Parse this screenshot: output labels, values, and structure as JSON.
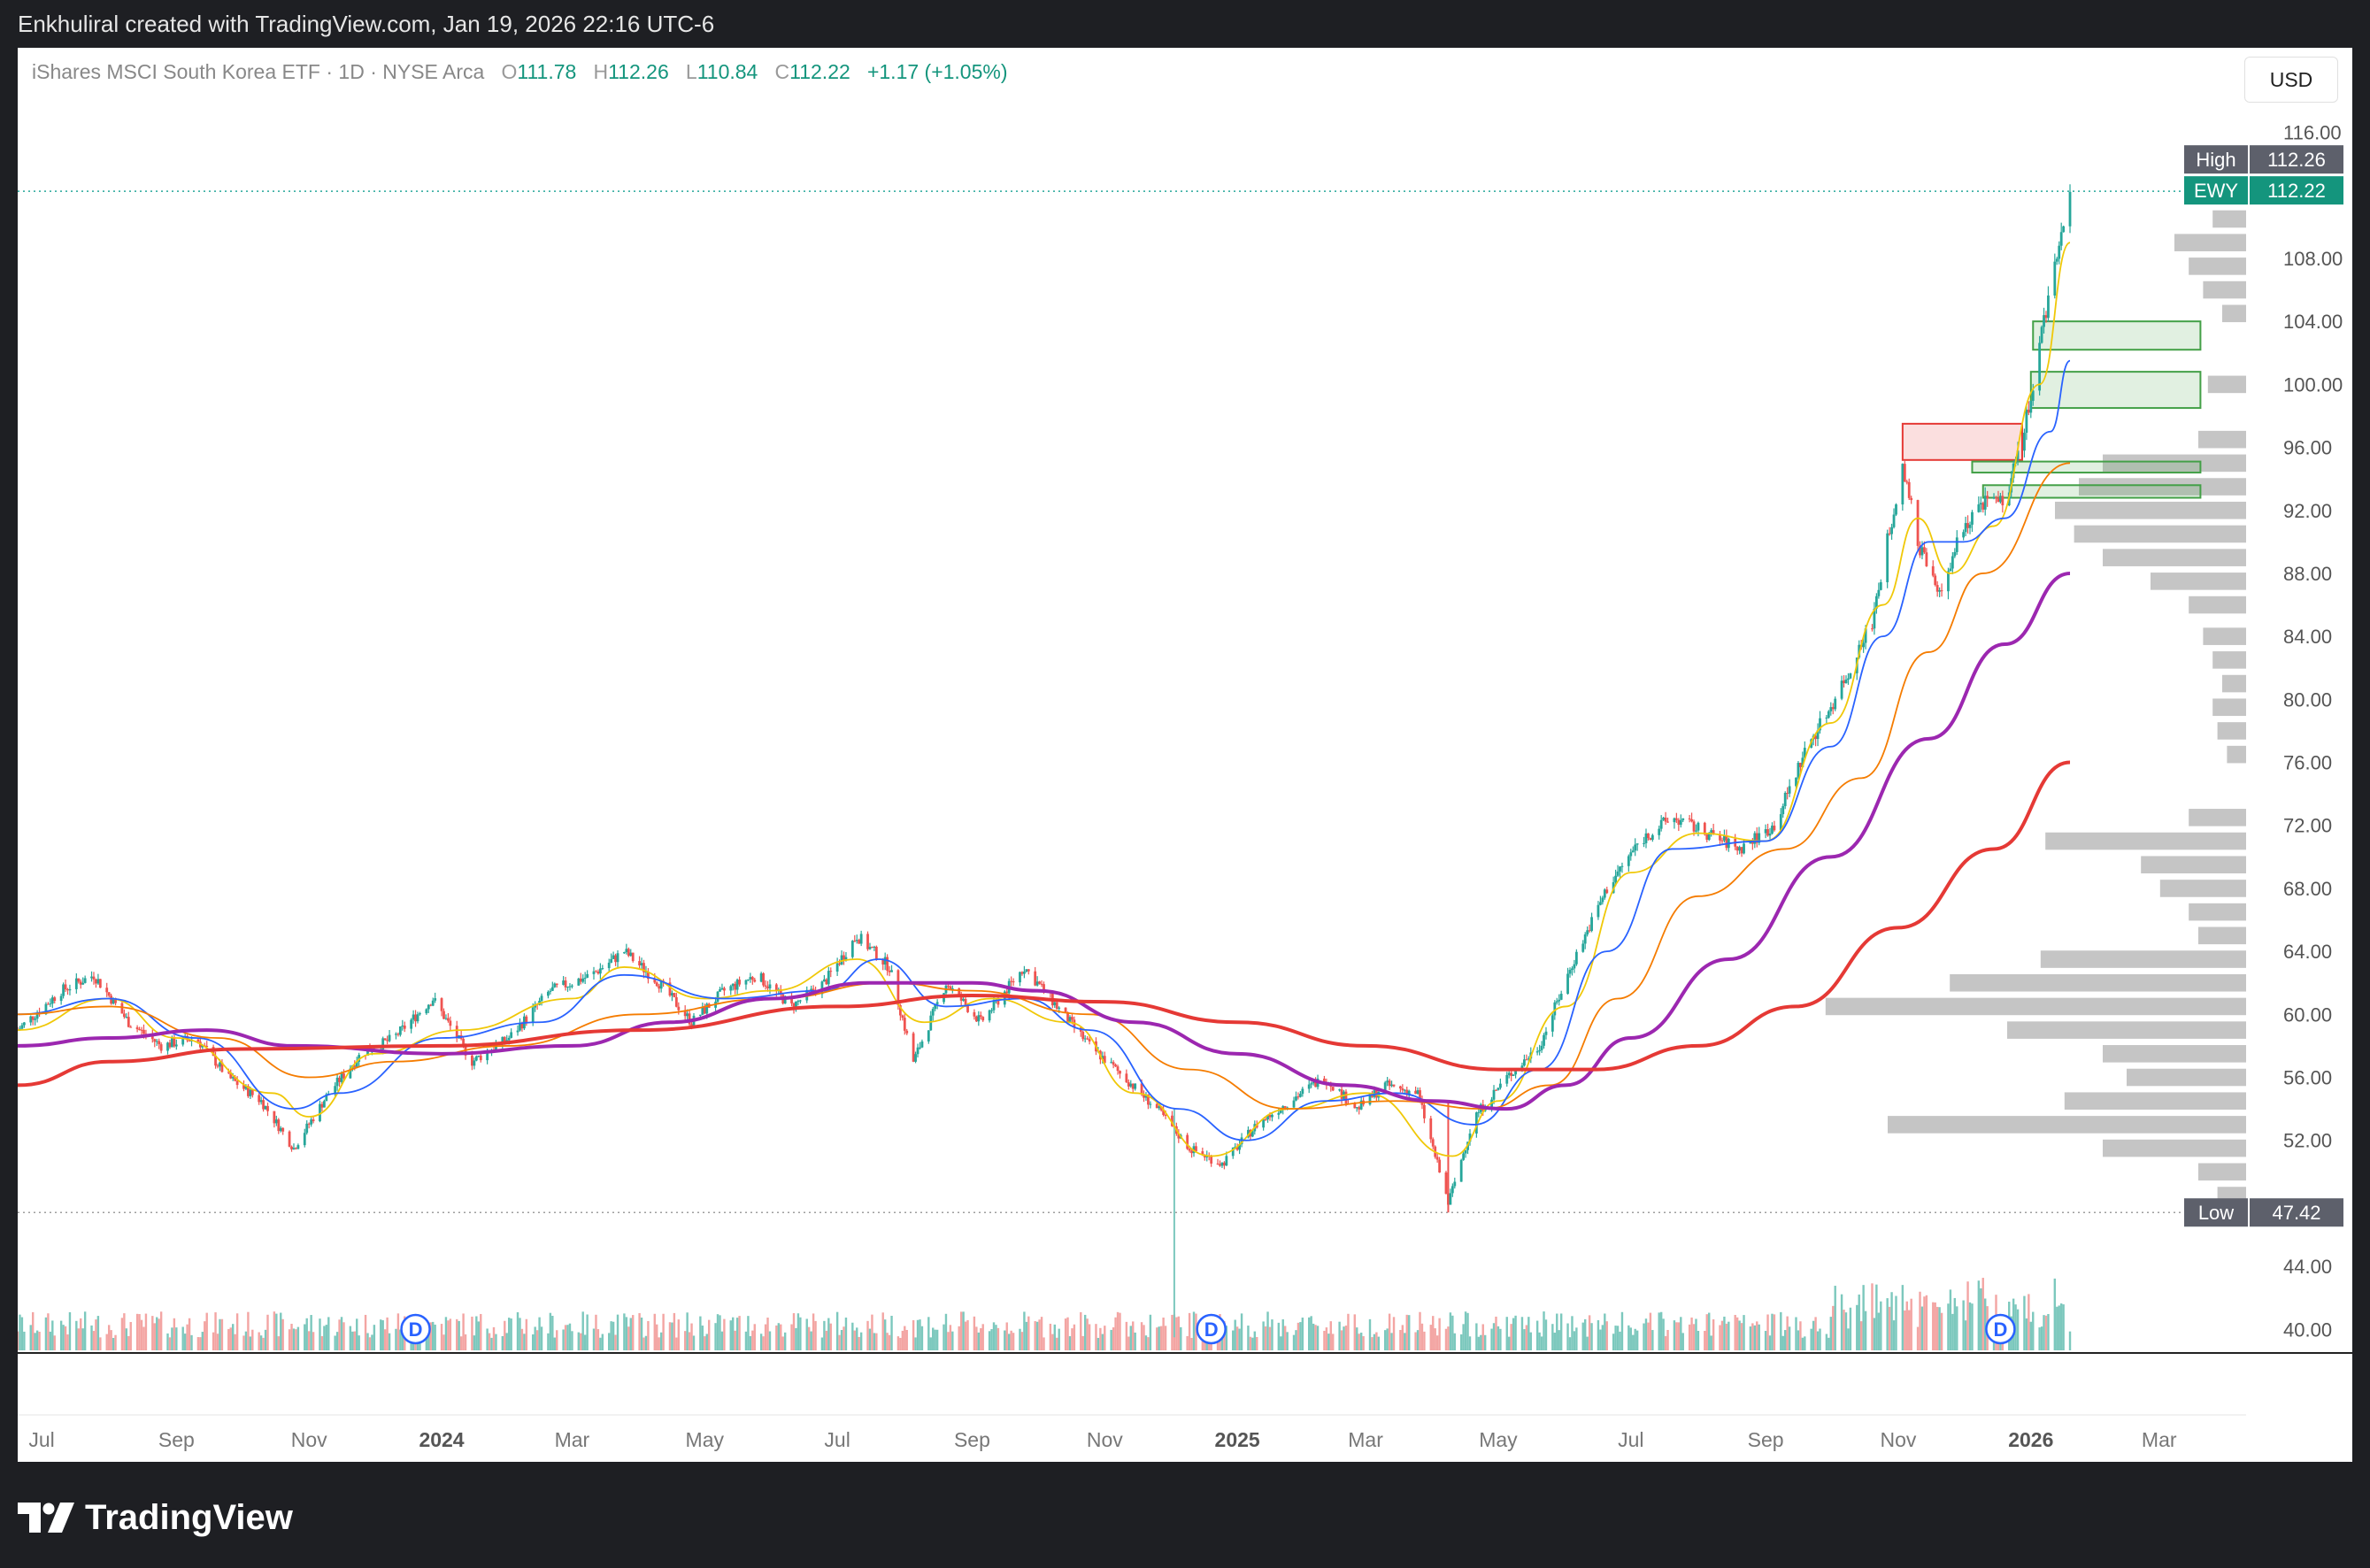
{
  "header": {
    "attribution": "Enkhuliral created with TradingView.com, Jan 19, 2026 22:16 UTC-6"
  },
  "legend": {
    "symbol_name": "iShares MSCI South Korea ETF · 1D · NYSE Arca",
    "open_label": "O",
    "open": "111.78",
    "high_label": "H",
    "high": "112.26",
    "low_label": "L",
    "low": "110.84",
    "close_label": "C",
    "close": "112.22",
    "change": "+1.17 (+1.05%)"
  },
  "currency_button": "USD",
  "price_tags": {
    "high_label": "High",
    "high_value": "112.26",
    "last_label": "EWY",
    "last_value": "112.22",
    "low_label": "Low",
    "low_value": "47.42"
  },
  "footer": {
    "brand": "TradingView"
  },
  "colors": {
    "up": "#26a69a",
    "down": "#ef5350",
    "ma10": "#f0c808",
    "ma20": "#2962ff",
    "ma50": "#f57c00",
    "ma100": "#9c27b0",
    "ma200": "#e53935",
    "demand_zone": "#43a047",
    "supply_zone": "#e53935",
    "volume_profile": "#b2b2b2"
  },
  "chart_data": {
    "type": "candlestick",
    "title": "iShares MSCI South Korea ETF · 1D · NYSE Arca",
    "symbol": "EWY",
    "interval": "1D",
    "currency": "USD",
    "y_axis_ticks": [
      "116.00",
      "108.00",
      "104.00",
      "100.00",
      "96.00",
      "92.00",
      "88.00",
      "84.00",
      "80.00",
      "76.00",
      "72.00",
      "68.00",
      "64.00",
      "60.00",
      "56.00",
      "52.00",
      "44.00",
      "40.00"
    ],
    "ylim": [
      38.5,
      118
    ],
    "x_axis_ticks": [
      {
        "label": "Jul",
        "date": "2023-07-01",
        "bold": false
      },
      {
        "label": "Sep",
        "date": "2023-09-01",
        "bold": false
      },
      {
        "label": "Nov",
        "date": "2023-11-01",
        "bold": false
      },
      {
        "label": "2024",
        "date": "2024-01-01",
        "bold": true
      },
      {
        "label": "Mar",
        "date": "2024-03-01",
        "bold": false
      },
      {
        "label": "May",
        "date": "2024-05-01",
        "bold": false
      },
      {
        "label": "Jul",
        "date": "2024-07-01",
        "bold": false
      },
      {
        "label": "Sep",
        "date": "2024-09-01",
        "bold": false
      },
      {
        "label": "Nov",
        "date": "2024-11-01",
        "bold": false
      },
      {
        "label": "2025",
        "date": "2025-01-01",
        "bold": true
      },
      {
        "label": "Mar",
        "date": "2025-03-01",
        "bold": false
      },
      {
        "label": "May",
        "date": "2025-05-01",
        "bold": false
      },
      {
        "label": "Jul",
        "date": "2025-07-01",
        "bold": false
      },
      {
        "label": "Sep",
        "date": "2025-09-01",
        "bold": false
      },
      {
        "label": "Nov",
        "date": "2025-11-01",
        "bold": false
      },
      {
        "label": "2026",
        "date": "2026-01-01",
        "bold": true
      },
      {
        "label": "Mar",
        "date": "2026-03-01",
        "bold": false
      }
    ],
    "price_path": [
      [
        "2023-06-20",
        59.0
      ],
      [
        "2023-07-10",
        61.5
      ],
      [
        "2023-07-25",
        62.5
      ],
      [
        "2023-08-10",
        59.5
      ],
      [
        "2023-08-25",
        58.0
      ],
      [
        "2023-09-10",
        58.5
      ],
      [
        "2023-09-25",
        56.0
      ],
      [
        "2023-10-10",
        54.5
      ],
      [
        "2023-10-25",
        51.5
      ],
      [
        "2023-11-10",
        55.0
      ],
      [
        "2023-11-25",
        57.5
      ],
      [
        "2023-12-10",
        58.5
      ],
      [
        "2023-12-28",
        61.0
      ],
      [
        "2024-01-15",
        57.0
      ],
      [
        "2024-02-01",
        58.5
      ],
      [
        "2024-02-20",
        61.5
      ],
      [
        "2024-03-10",
        62.5
      ],
      [
        "2024-03-25",
        64.0
      ],
      [
        "2024-04-10",
        62.0
      ],
      [
        "2024-04-25",
        59.5
      ],
      [
        "2024-05-10",
        61.5
      ],
      [
        "2024-05-25",
        62.5
      ],
      [
        "2024-06-10",
        60.5
      ],
      [
        "2024-06-25",
        62.0
      ],
      [
        "2024-07-10",
        65.0
      ],
      [
        "2024-07-25",
        63.0
      ],
      [
        "2024-08-05",
        57.0
      ],
      [
        "2024-08-20",
        62.0
      ],
      [
        "2024-09-05",
        59.5
      ],
      [
        "2024-09-25",
        63.0
      ],
      [
        "2024-10-10",
        60.5
      ],
      [
        "2024-10-25",
        58.0
      ],
      [
        "2024-11-10",
        56.0
      ],
      [
        "2024-11-25",
        54.0
      ],
      [
        "2024-12-10",
        51.5
      ],
      [
        "2024-12-25",
        50.5
      ],
      [
        "2025-01-10",
        53.0
      ],
      [
        "2025-01-25",
        54.5
      ],
      [
        "2025-02-10",
        56.0
      ],
      [
        "2025-02-25",
        54.0
      ],
      [
        "2025-03-10",
        55.5
      ],
      [
        "2025-03-25",
        55.0
      ],
      [
        "2025-04-08",
        48.0
      ],
      [
        "2025-04-20",
        53.5
      ],
      [
        "2025-05-05",
        56.0
      ],
      [
        "2025-05-20",
        58.0
      ],
      [
        "2025-06-05",
        63.5
      ],
      [
        "2025-06-20",
        68.0
      ],
      [
        "2025-07-05",
        71.0
      ],
      [
        "2025-07-20",
        72.5
      ],
      [
        "2025-08-05",
        71.5
      ],
      [
        "2025-08-20",
        70.5
      ],
      [
        "2025-09-05",
        72.0
      ],
      [
        "2025-09-20",
        77.0
      ],
      [
        "2025-10-05",
        80.5
      ],
      [
        "2025-10-20",
        85.0
      ],
      [
        "2025-11-03",
        95.0
      ],
      [
        "2025-11-10",
        90.0
      ],
      [
        "2025-11-20",
        86.5
      ],
      [
        "2025-12-01",
        91.0
      ],
      [
        "2025-12-10",
        92.5
      ],
      [
        "2025-12-20",
        92.5
      ],
      [
        "2026-01-01",
        99.0
      ],
      [
        "2026-01-10",
        106.5
      ],
      [
        "2026-01-19",
        112.22
      ]
    ],
    "moving_averages": [
      {
        "color": "#f0c808",
        "points": [
          [
            "2023-06-20",
            59.0
          ],
          [
            "2023-08-01",
            61.0
          ],
          [
            "2023-09-01",
            58.5
          ],
          [
            "2023-10-15",
            55.0
          ],
          [
            "2023-11-01",
            53.5
          ],
          [
            "2023-12-01",
            57.5
          ],
          [
            "2024-01-10",
            59.0
          ],
          [
            "2024-03-01",
            61.0
          ],
          [
            "2024-03-25",
            63.0
          ],
          [
            "2024-05-01",
            61.0
          ],
          [
            "2024-06-01",
            61.5
          ],
          [
            "2024-07-10",
            63.5
          ],
          [
            "2024-08-10",
            59.5
          ],
          [
            "2024-09-10",
            61.0
          ],
          [
            "2024-10-15",
            59.5
          ],
          [
            "2024-11-15",
            55.0
          ],
          [
            "2024-12-20",
            51.0
          ],
          [
            "2025-01-25",
            54.0
          ],
          [
            "2025-03-01",
            55.0
          ],
          [
            "2025-04-10",
            51.0
          ],
          [
            "2025-05-01",
            54.5
          ],
          [
            "2025-06-01",
            60.5
          ],
          [
            "2025-07-01",
            69.0
          ],
          [
            "2025-08-01",
            71.5
          ],
          [
            "2025-09-01",
            71.0
          ],
          [
            "2025-10-01",
            78.5
          ],
          [
            "2025-10-25",
            86.0
          ],
          [
            "2025-11-10",
            91.5
          ],
          [
            "2025-11-25",
            88.0
          ],
          [
            "2025-12-15",
            91.0
          ],
          [
            "2026-01-05",
            100.0
          ],
          [
            "2026-01-19",
            109.0
          ]
        ]
      },
      {
        "color": "#2962ff",
        "points": [
          [
            "2023-06-20",
            60.0
          ],
          [
            "2023-08-01",
            61.0
          ],
          [
            "2023-09-10",
            58.5
          ],
          [
            "2023-10-25",
            54.0
          ],
          [
            "2023-11-15",
            55.0
          ],
          [
            "2024-01-01",
            58.5
          ],
          [
            "2024-02-15",
            59.5
          ],
          [
            "2024-03-25",
            62.5
          ],
          [
            "2024-05-10",
            61.0
          ],
          [
            "2024-06-25",
            61.5
          ],
          [
            "2024-07-20",
            63.5
          ],
          [
            "2024-08-20",
            60.5
          ],
          [
            "2024-09-25",
            61.0
          ],
          [
            "2024-10-25",
            59.0
          ],
          [
            "2024-12-05",
            54.0
          ],
          [
            "2025-01-05",
            52.0
          ],
          [
            "2025-02-10",
            54.5
          ],
          [
            "2025-03-15",
            55.0
          ],
          [
            "2025-04-20",
            53.0
          ],
          [
            "2025-05-20",
            56.5
          ],
          [
            "2025-06-20",
            64.0
          ],
          [
            "2025-07-20",
            70.5
          ],
          [
            "2025-09-01",
            71.0
          ],
          [
            "2025-10-01",
            77.0
          ],
          [
            "2025-10-25",
            84.0
          ],
          [
            "2025-11-15",
            90.0
          ],
          [
            "2025-12-01",
            90.0
          ],
          [
            "2025-12-20",
            91.5
          ],
          [
            "2026-01-10",
            97.0
          ],
          [
            "2026-01-19",
            101.5
          ]
        ]
      },
      {
        "color": "#f57c00",
        "points": [
          [
            "2023-06-20",
            60.0
          ],
          [
            "2023-08-01",
            60.5
          ],
          [
            "2023-09-20",
            58.5
          ],
          [
            "2023-11-01",
            56.0
          ],
          [
            "2023-12-10",
            57.0
          ],
          [
            "2024-02-01",
            58.0
          ],
          [
            "2024-04-01",
            60.0
          ],
          [
            "2024-06-01",
            61.0
          ],
          [
            "2024-07-25",
            62.0
          ],
          [
            "2024-09-01",
            61.5
          ],
          [
            "2024-10-25",
            60.0
          ],
          [
            "2024-12-10",
            56.5
          ],
          [
            "2025-01-25",
            54.0
          ],
          [
            "2025-03-15",
            54.5
          ],
          [
            "2025-04-25",
            54.0
          ],
          [
            "2025-05-25",
            55.5
          ],
          [
            "2025-06-25",
            61.0
          ],
          [
            "2025-08-01",
            67.5
          ],
          [
            "2025-09-10",
            70.5
          ],
          [
            "2025-10-15",
            75.0
          ],
          [
            "2025-11-15",
            83.0
          ],
          [
            "2025-12-10",
            88.0
          ],
          [
            "2026-01-19",
            95.0
          ]
        ]
      },
      {
        "color": "#9c27b0",
        "points": [
          [
            "2023-06-20",
            58.0
          ],
          [
            "2023-08-01",
            58.5
          ],
          [
            "2023-09-15",
            59.0
          ],
          [
            "2023-10-25",
            58.0
          ],
          [
            "2024-01-01",
            57.5
          ],
          [
            "2024-03-01",
            58.0
          ],
          [
            "2024-04-15",
            59.5
          ],
          [
            "2024-06-01",
            61.0
          ],
          [
            "2024-07-15",
            62.0
          ],
          [
            "2024-09-01",
            62.0
          ],
          [
            "2024-10-01",
            61.5
          ],
          [
            "2024-11-15",
            59.5
          ],
          [
            "2025-01-01",
            57.5
          ],
          [
            "2025-02-20",
            55.5
          ],
          [
            "2025-04-01",
            54.5
          ],
          [
            "2025-05-05",
            54.0
          ],
          [
            "2025-06-01",
            55.5
          ],
          [
            "2025-07-01",
            58.5
          ],
          [
            "2025-08-15",
            63.5
          ],
          [
            "2025-10-01",
            70.0
          ],
          [
            "2025-11-15",
            77.5
          ],
          [
            "2025-12-20",
            83.5
          ],
          [
            "2026-01-19",
            88.0
          ]
        ]
      },
      {
        "color": "#e53935",
        "points": [
          [
            "2023-06-20",
            55.5
          ],
          [
            "2023-08-01",
            57.0
          ],
          [
            "2023-10-01",
            57.8
          ],
          [
            "2024-01-01",
            58.0
          ],
          [
            "2024-04-01",
            59.0
          ],
          [
            "2024-07-01",
            60.5
          ],
          [
            "2024-09-01",
            61.2
          ],
          [
            "2024-11-01",
            60.8
          ],
          [
            "2025-01-01",
            59.5
          ],
          [
            "2025-03-01",
            58.0
          ],
          [
            "2025-05-01",
            56.5
          ],
          [
            "2025-06-15",
            56.5
          ],
          [
            "2025-08-01",
            58.0
          ],
          [
            "2025-09-15",
            60.5
          ],
          [
            "2025-11-01",
            65.5
          ],
          [
            "2025-12-15",
            70.5
          ],
          [
            "2026-01-19",
            76.0
          ]
        ]
      }
    ],
    "zones": [
      {
        "kind": "supply",
        "from": "2025-11-03",
        "to": "2025-12-28",
        "low": 95.2,
        "high": 97.5
      },
      {
        "kind": "demand",
        "from": "2026-01-02",
        "to": "2026-03-20",
        "low": 102.2,
        "high": 104.0
      },
      {
        "kind": "demand",
        "from": "2026-01-01",
        "to": "2026-03-20",
        "low": 98.5,
        "high": 100.8
      },
      {
        "kind": "demand",
        "from": "2025-12-05",
        "to": "2026-03-20",
        "low": 94.4,
        "high": 95.1
      },
      {
        "kind": "demand",
        "from": "2025-12-10",
        "to": "2026-03-20",
        "low": 92.8,
        "high": 93.6
      }
    ],
    "volume_profile": [
      {
        "price": 110.5,
        "size": 0.07
      },
      {
        "price": 109.0,
        "size": 0.15
      },
      {
        "price": 107.5,
        "size": 0.12
      },
      {
        "price": 106.0,
        "size": 0.09
      },
      {
        "price": 104.5,
        "size": 0.05
      },
      {
        "price": 100.0,
        "size": 0.08
      },
      {
        "price": 96.5,
        "size": 0.1
      },
      {
        "price": 95.0,
        "size": 0.3
      },
      {
        "price": 93.5,
        "size": 0.35
      },
      {
        "price": 92.0,
        "size": 0.4
      },
      {
        "price": 90.5,
        "size": 0.36
      },
      {
        "price": 89.0,
        "size": 0.3
      },
      {
        "price": 87.5,
        "size": 0.2
      },
      {
        "price": 86.0,
        "size": 0.12
      },
      {
        "price": 84.0,
        "size": 0.09
      },
      {
        "price": 82.5,
        "size": 0.07
      },
      {
        "price": 81.0,
        "size": 0.05
      },
      {
        "price": 79.5,
        "size": 0.07
      },
      {
        "price": 78.0,
        "size": 0.06
      },
      {
        "price": 76.5,
        "size": 0.04
      },
      {
        "price": 72.5,
        "size": 0.12
      },
      {
        "price": 71.0,
        "size": 0.42
      },
      {
        "price": 69.5,
        "size": 0.22
      },
      {
        "price": 68.0,
        "size": 0.18
      },
      {
        "price": 66.5,
        "size": 0.12
      },
      {
        "price": 65.0,
        "size": 0.1
      },
      {
        "price": 63.5,
        "size": 0.43
      },
      {
        "price": 62.0,
        "size": 0.62
      },
      {
        "price": 60.5,
        "size": 0.88
      },
      {
        "price": 59.0,
        "size": 0.5
      },
      {
        "price": 57.5,
        "size": 0.3
      },
      {
        "price": 56.0,
        "size": 0.25
      },
      {
        "price": 54.5,
        "size": 0.38
      },
      {
        "price": 53.0,
        "size": 0.75
      },
      {
        "price": 51.5,
        "size": 0.3
      },
      {
        "price": 50.0,
        "size": 0.1
      },
      {
        "price": 48.5,
        "size": 0.06
      }
    ],
    "dividend_markers": [
      "2023-12-20",
      "2024-12-20",
      "2025-12-18"
    ],
    "dividend_marker_label": "D",
    "extremes": {
      "high": 112.26,
      "low": 47.42,
      "low_date": "2025-04-08"
    }
  }
}
